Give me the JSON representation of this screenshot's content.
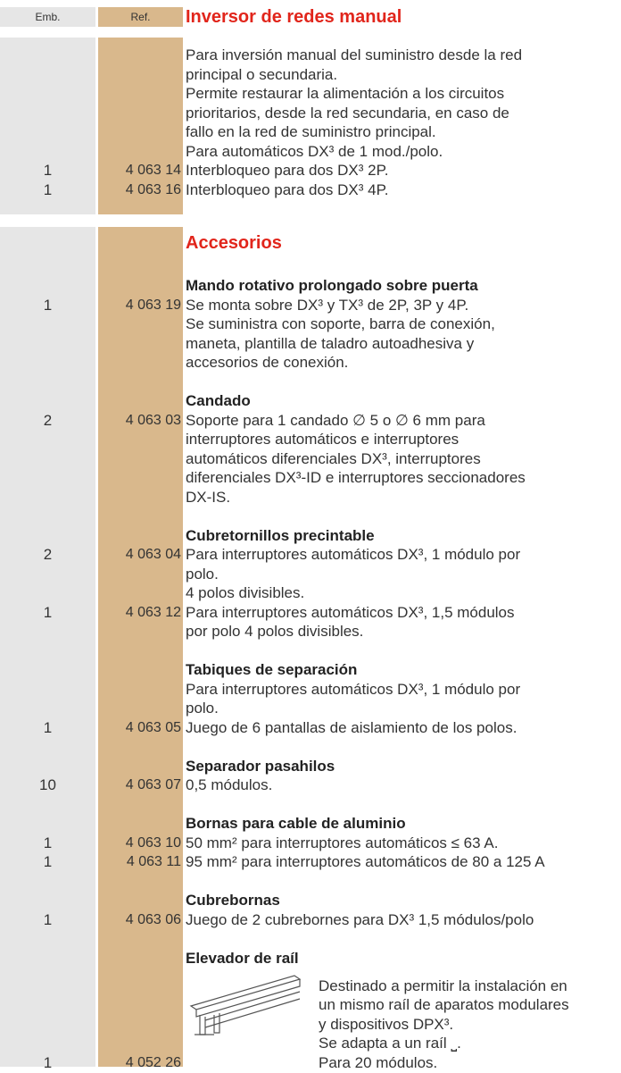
{
  "header": {
    "emb": "Emb.",
    "ref": "Ref."
  },
  "sections": [
    {
      "title": "Inversor de redes manual",
      "groups": [
        {
          "entries": [
            {
              "lines": [
                "Para inversión manual del suministro desde la red",
                "principal o secundaria.",
                "Permite restaurar la alimentación a los circuitos",
                "prioritarios, desde la red secundaria, en caso de",
                "fallo en la red de suministro principal.",
                "Para automáticos DX³ de 1 mod./polo."
              ]
            },
            {
              "emb": "1",
              "ref": "4 063 14",
              "lines": [
                "Interbloqueo para dos DX³ 2P."
              ]
            },
            {
              "emb": "1",
              "ref": "4 063 16",
              "lines": [
                "Interbloqueo para dos DX³ 4P."
              ]
            }
          ]
        }
      ]
    },
    {
      "title": "Accesorios",
      "groups": [
        {
          "heading": "Mando rotativo prolongado sobre puerta",
          "entries": [
            {
              "emb": "1",
              "ref": "4 063 19",
              "lines": [
                "Se monta sobre DX³ y TX³ de 2P, 3P y 4P.",
                "Se suministra con soporte, barra de conexión,",
                "maneta, plantilla de taladro autoadhesiva y",
                "accesorios de conexión."
              ]
            }
          ]
        },
        {
          "heading": "Candado",
          "entries": [
            {
              "emb": "2",
              "ref": "4 063 03",
              "lines": [
                "Soporte para 1 candado ∅ 5 o ∅ 6 mm para",
                "interruptores automáticos e interruptores",
                "automáticos diferenciales DX³, interruptores",
                "diferenciales DX³-ID e interruptores seccionadores",
                "DX-IS."
              ]
            }
          ]
        },
        {
          "heading": "Cubretornillos precintable",
          "entries": [
            {
              "emb": "2",
              "ref": "4 063 04",
              "lines": [
                "Para interruptores automáticos DX³, 1 módulo por",
                "polo.",
                "4 polos divisibles."
              ]
            },
            {
              "emb": "1",
              "ref": "4 063 12",
              "lines": [
                "Para interruptores automáticos DX³, 1,5 módulos",
                "por polo 4 polos divisibles."
              ]
            }
          ]
        },
        {
          "heading": "Tabiques de separación",
          "entries": [
            {
              "lines": [
                "Para interruptores automáticos DX³, 1 módulo por",
                "polo."
              ]
            },
            {
              "emb": "1",
              "ref": "4 063 05",
              "lines": [
                "Juego de 6 pantallas de aislamiento de los polos."
              ]
            }
          ]
        },
        {
          "heading": "Separador pasahilos",
          "entries": [
            {
              "emb": "10",
              "ref": "4 063 07",
              "lines": [
                "0,5 módulos."
              ]
            }
          ]
        },
        {
          "heading": "Bornas para cable de aluminio",
          "entries": [
            {
              "emb": "1",
              "ref": "4 063 10",
              "lines": [
                "50 mm² para interruptores automáticos ≤ 63 A."
              ]
            },
            {
              "emb": "1",
              "ref": "4 063 11",
              "lines": [
                "95 mm² para interruptores automáticos de 80 a 125 A"
              ]
            }
          ]
        },
        {
          "heading": "Cubrebornas",
          "entries": [
            {
              "emb": "1",
              "ref": "4 063 06",
              "lines": [
                "Juego de 2 cubrebornes para DX³ 1,5 módulos/polo"
              ]
            }
          ]
        },
        {
          "heading": "Elevador de raíl",
          "entries": [
            {
              "lines": [
                "Destinado a permitir la instalación en",
                "un mismo raíl de aparatos modulares",
                "y dispositivos DPX³.",
                "Se adapta a un raíl ⎵."
              ]
            },
            {
              "emb": "1",
              "ref": "4 052 26",
              "lines": [
                "Para 20 módulos."
              ]
            }
          ]
        }
      ]
    }
  ]
}
